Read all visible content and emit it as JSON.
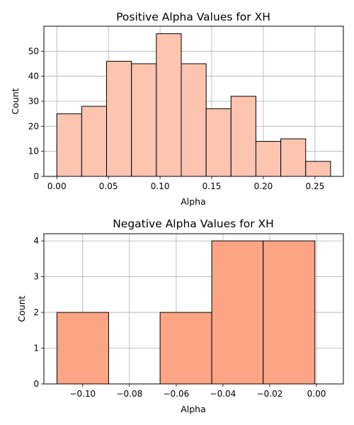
{
  "chart_data": [
    {
      "type": "bar",
      "title": "Positive Alpha Values for XH",
      "xlabel": "Alpha",
      "ylabel": "Count",
      "xlim": [
        -0.0125,
        0.2775
      ],
      "ylim": [
        0,
        60
      ],
      "xticks": [
        0.0,
        0.05,
        0.1,
        0.15,
        0.2,
        0.25
      ],
      "xtick_labels": [
        "0.00",
        "0.05",
        "0.10",
        "0.15",
        "0.20",
        "0.25"
      ],
      "yticks": [
        0,
        10,
        20,
        30,
        40,
        50
      ],
      "ytick_labels": [
        "0",
        "10",
        "20",
        "30",
        "40",
        "50"
      ],
      "bin_edges": [
        0.0,
        0.0241,
        0.0482,
        0.0723,
        0.0964,
        0.1205,
        0.1446,
        0.1687,
        0.1928,
        0.2169,
        0.241,
        0.2651
      ],
      "values": [
        25,
        28,
        46,
        45,
        57,
        45,
        27,
        32,
        14,
        15,
        6
      ],
      "color": "#fdc4b0",
      "edgecolor": "#000000",
      "grid": true
    },
    {
      "type": "bar",
      "title": "Negative Alpha Values for XH",
      "xlabel": "Alpha",
      "ylabel": "Count",
      "xlim": [
        -0.1166,
        0.0115
      ],
      "ylim": [
        0,
        4.2
      ],
      "xticks": [
        -0.1,
        -0.08,
        -0.06,
        -0.04,
        -0.02,
        0.0
      ],
      "xtick_labels": [
        "−0.10",
        "−0.08",
        "−0.06",
        "−0.04",
        "−0.02",
        "0.00"
      ],
      "yticks": [
        0,
        1,
        2,
        3,
        4
      ],
      "ytick_labels": [
        "0",
        "1",
        "2",
        "3",
        "4"
      ],
      "bin_edges": [
        -0.111,
        -0.0889,
        -0.0669,
        -0.0448,
        -0.0228,
        -0.0007
      ],
      "values": [
        2,
        0,
        2,
        4,
        4
      ],
      "color": "#fca584",
      "edgecolor": "#000000",
      "grid": true
    }
  ]
}
